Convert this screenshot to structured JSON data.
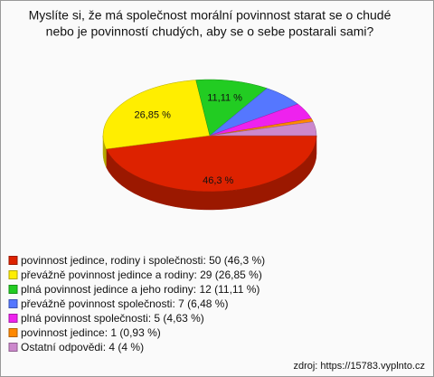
{
  "chart_data": {
    "type": "pie",
    "title": [
      "Myslíte si, že má společnost morální povinnost starat se o chudé",
      "nebo je povinností chudých, aby se o sebe postarali sami?"
    ],
    "categories": [
      "povinnost jedince, rodiny i společnosti: 50 (46,3 %)",
      "převážně povinnost jedince a rodiny: 29 (26,85 %)",
      "plná povinnost jedince a jeho rodiny: 12 (11,11 %)",
      "převážně povinnost společnosti: 7 (6,48 %)",
      "plná povinnost společnosti: 5 (4,63 %)",
      "povinnost jedince: 1 (0,93 %)",
      "Ostatní odpovědi: 4 (4 %)"
    ],
    "values": [
      46.3,
      26.85,
      11.11,
      6.48,
      4.63,
      0.93,
      4
    ],
    "value_labels": [
      "46,3 %",
      "26,85 %",
      "11,11 %",
      null,
      null,
      null,
      null
    ],
    "colors": [
      "#dd2200",
      "#ffee00",
      "#22cc22",
      "#5577ff",
      "#ee22ee",
      "#ff8800",
      "#cc88cc"
    ],
    "source": "zdroj: https://15783.vyplnto.cz"
  }
}
